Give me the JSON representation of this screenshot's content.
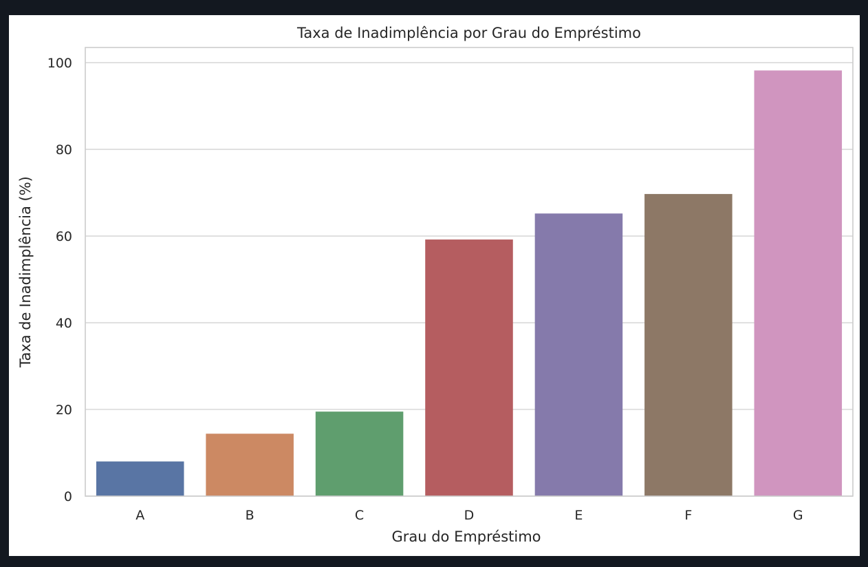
{
  "chart_data": {
    "type": "bar",
    "title": "Taxa de Inadimplência por Grau do Empréstimo",
    "xlabel": "Grau do Empréstimo",
    "ylabel": "Taxa de Inadimplência (%)",
    "categories": [
      "A",
      "B",
      "C",
      "D",
      "E",
      "F",
      "G"
    ],
    "values": [
      8.0,
      14.4,
      19.5,
      59.2,
      65.2,
      69.7,
      98.2
    ],
    "ylim": [
      0,
      103.5
    ],
    "yticks": [
      0,
      20,
      40,
      60,
      80,
      100
    ],
    "colors": [
      "#5975a4",
      "#cc8963",
      "#5f9e6e",
      "#b55d60",
      "#857aab",
      "#8d7866",
      "#d095bf"
    ],
    "grid": true,
    "style": "seaborn-whitegrid"
  }
}
